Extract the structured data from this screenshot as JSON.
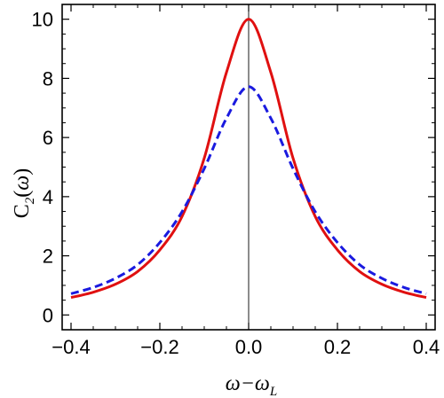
{
  "chart_data": {
    "type": "line",
    "xlabel": "ω−ω_L",
    "ylabel": "C_2(ω)",
    "xlim": [
      -0.42,
      0.42
    ],
    "ylim": [
      -0.5,
      10.5
    ],
    "x_ticks": [
      "−0.4",
      "−0.2",
      "0.0",
      "0.2",
      "0.4"
    ],
    "y_ticks": [
      "0",
      "2",
      "4",
      "6",
      "8",
      "10"
    ],
    "x_tick_values": [
      -0.4,
      -0.2,
      0.0,
      0.2,
      0.4
    ],
    "y_tick_values": [
      0,
      2,
      4,
      6,
      8,
      10
    ],
    "vertical_line_x": 0.0,
    "grid": false,
    "x": [
      -0.4,
      -0.35,
      -0.3,
      -0.25,
      -0.2,
      -0.15,
      -0.1,
      -0.05,
      0.0,
      0.05,
      0.1,
      0.15,
      0.2,
      0.25,
      0.3,
      0.35,
      0.4
    ],
    "series": [
      {
        "color": "#e01010",
        "style": "solid",
        "values": [
          0.59,
          0.77,
          1.04,
          1.47,
          2.2,
          3.33,
          5.3,
          8.2,
          10.0,
          8.2,
          5.3,
          3.33,
          2.2,
          1.47,
          1.04,
          0.77,
          0.59
        ]
      },
      {
        "color": "#1a1adf",
        "style": "dashed",
        "values": [
          0.72,
          0.93,
          1.24,
          1.7,
          2.45,
          3.49,
          4.95,
          6.65,
          7.72,
          6.65,
          4.95,
          3.49,
          2.45,
          1.7,
          1.24,
          0.93,
          0.72
        ]
      }
    ]
  }
}
